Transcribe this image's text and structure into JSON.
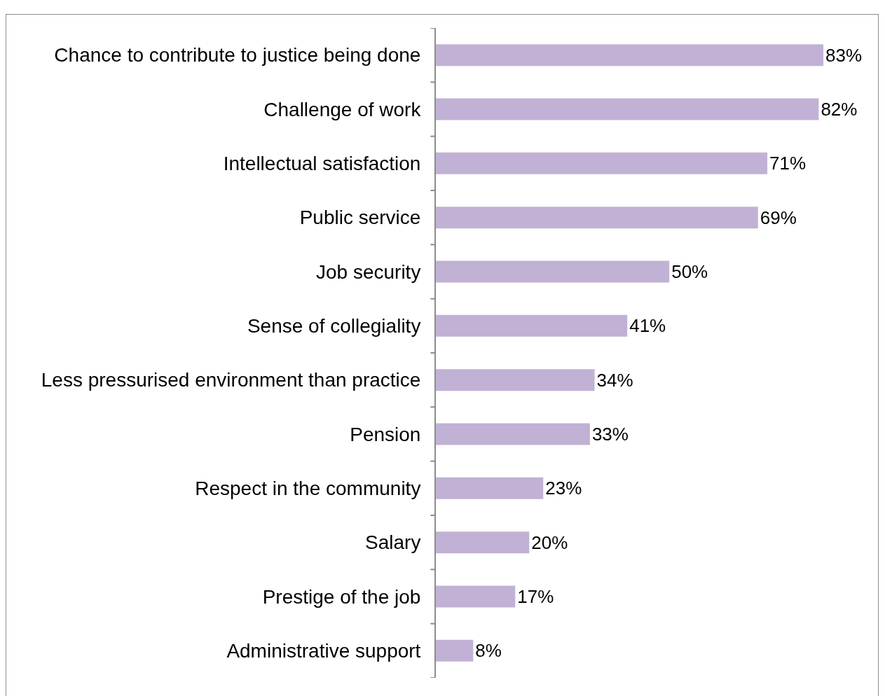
{
  "chart_data": {
    "type": "bar",
    "orientation": "horizontal",
    "categories": [
      "Chance to contribute to justice being done",
      "Challenge of work",
      "Intellectual satisfaction",
      "Public service",
      "Job security",
      "Sense of collegiality",
      "Less pressurised environment than practice",
      "Pension",
      "Respect in the community",
      "Salary",
      "Prestige of the job",
      "Administrative support"
    ],
    "values": [
      83,
      82,
      71,
      69,
      50,
      41,
      34,
      33,
      23,
      20,
      17,
      8
    ],
    "value_labels": [
      "83%",
      "82%",
      "71%",
      "69%",
      "50%",
      "41%",
      "34%",
      "33%",
      "23%",
      "20%",
      "17%",
      "8%"
    ],
    "color": "#c1b1d4",
    "xlim": [
      0,
      95
    ]
  }
}
